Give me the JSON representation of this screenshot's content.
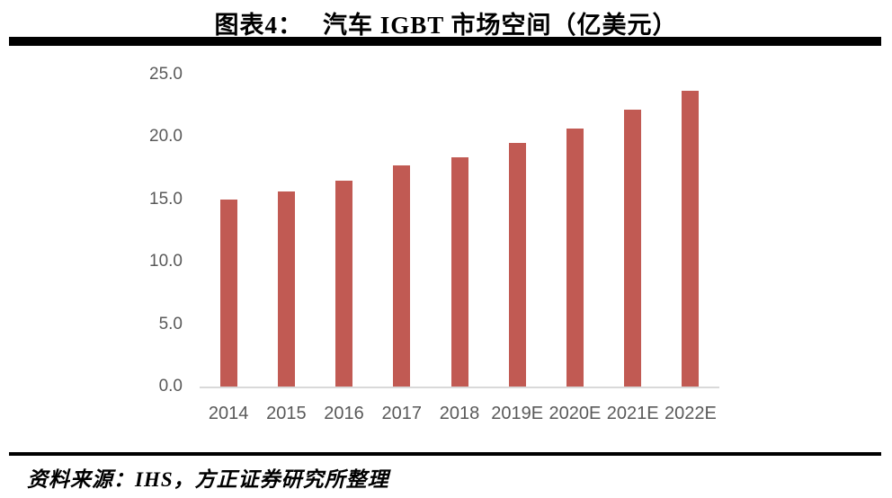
{
  "header": {
    "figure_label": "图表4：",
    "figure_title": "汽车 IGBT 市场空间（亿美元）"
  },
  "chart_data": {
    "type": "bar",
    "title": "汽车 IGBT 市场空间（亿美元）",
    "categories": [
      "2014",
      "2015",
      "2016",
      "2017",
      "2018",
      "2019E",
      "2020E",
      "2021E",
      "2022E"
    ],
    "values": [
      15.0,
      15.6,
      16.5,
      17.7,
      18.4,
      19.5,
      20.7,
      22.2,
      23.7
    ],
    "xlabel": "",
    "ylabel": "",
    "ylim": [
      0,
      25
    ],
    "ytick_interval": 5,
    "ytick_labels": [
      "0.0",
      "5.0",
      "10.0",
      "15.0",
      "20.0",
      "25.0"
    ],
    "grid": false,
    "legend_position": "none",
    "bar_color": "#c15a53",
    "axis_label_color": "#595959",
    "axis_line_color": "#d9d9d9"
  },
  "footer": {
    "source_text": "资料来源：IHS，方正证券研究所整理"
  }
}
